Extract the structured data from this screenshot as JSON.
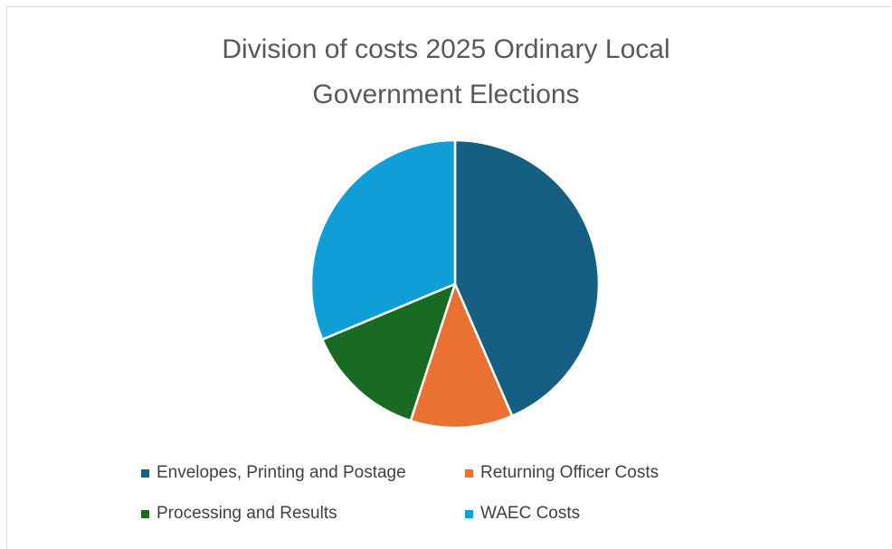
{
  "chart_data": {
    "type": "pie",
    "title_lines": [
      "Division of costs 2025 Ordinary Local",
      "Government Elections"
    ],
    "categories": [
      "Envelopes, Printing and Postage",
      "Returning Officer Costs",
      "Processing and Results",
      "WAEC Costs"
    ],
    "values": [
      43.5,
      11.5,
      13.7,
      31.3
    ],
    "unit": "percent (estimated from slice angles)",
    "colors": [
      "#156082",
      "#e97132",
      "#196b24",
      "#0f9ed5"
    ],
    "legend_position": "bottom",
    "start_angle": "12 o'clock, clockwise"
  }
}
